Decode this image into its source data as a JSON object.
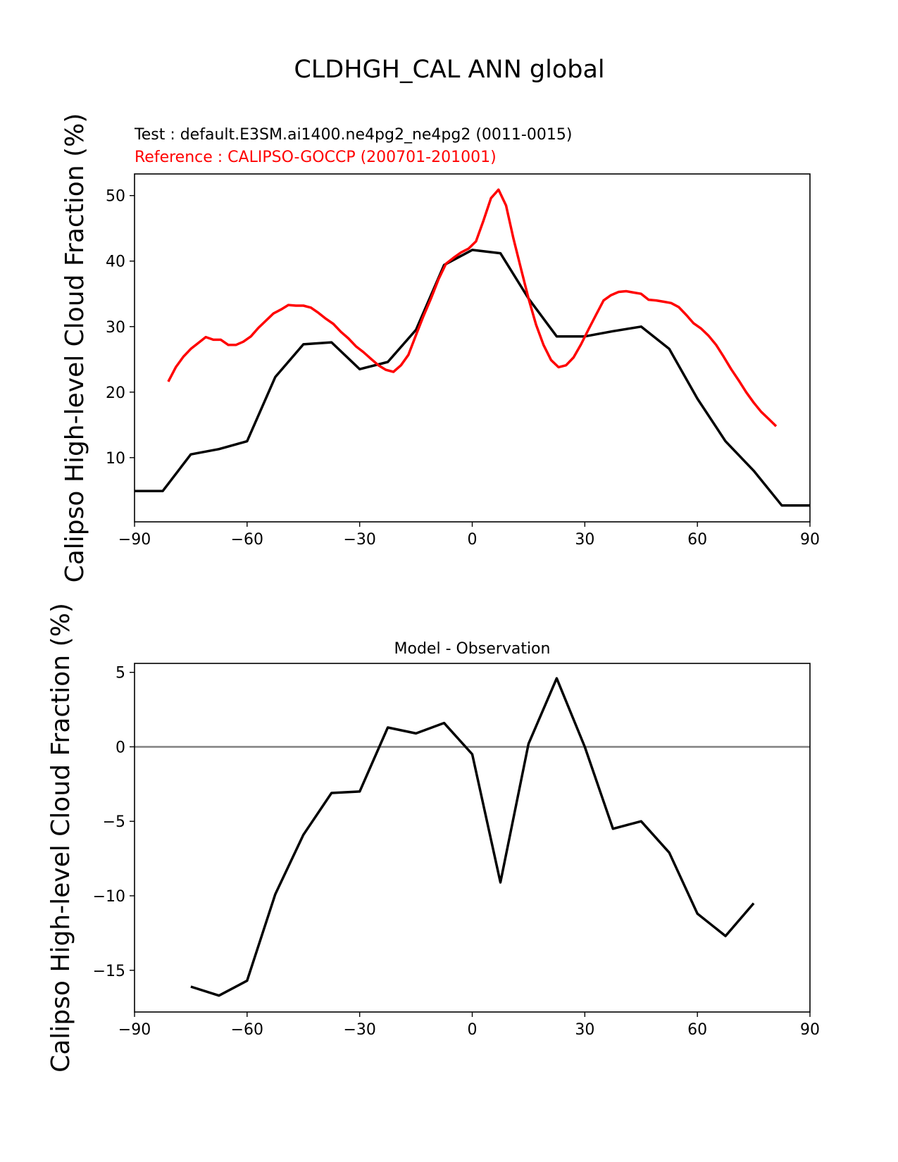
{
  "figure_title": "CLDHGH_CAL ANN global",
  "test_label": "Test : default.E3SM.ai1400.ne4pg2_ne4pg2 (0011-0015)",
  "reference_label": "Reference : CALIPSO-GOCCP (200701-201001)",
  "colors": {
    "test": "#000000",
    "reference": "#ff0000",
    "zero_line": "#808080"
  },
  "chart_data": [
    {
      "type": "line",
      "title": "",
      "xlabel": "",
      "ylabel": "Calipso High-level Cloud Fraction (%)",
      "xlim": [
        -90,
        90
      ],
      "ylim": [
        0.2,
        53.3
      ],
      "xticks": [
        -90,
        -60,
        -30,
        0,
        30,
        60,
        90
      ],
      "xtick_labels": [
        "−90",
        "−60",
        "−30",
        "0",
        "30",
        "60",
        "90"
      ],
      "yticks": [
        10,
        20,
        30,
        40,
        50
      ],
      "ytick_labels": [
        "10",
        "20",
        "30",
        "40",
        "50"
      ],
      "series": [
        {
          "name": "Test",
          "color": "#000000",
          "x": [
            -90,
            -82.5,
            -75,
            -67.5,
            -60,
            -52.5,
            -45,
            -37.5,
            -30,
            -22.5,
            -15,
            -7.5,
            0,
            7.5,
            15,
            22.5,
            30,
            37.5,
            45,
            52.5,
            60,
            67.5,
            75,
            82.5,
            90
          ],
          "y": [
            4.9,
            4.9,
            10.5,
            11.3,
            12.5,
            22.3,
            27.3,
            27.6,
            23.5,
            24.6,
            29.5,
            39.4,
            41.7,
            41.2,
            34.3,
            28.5,
            28.5,
            29.3,
            30.0,
            26.6,
            19.0,
            12.5,
            8.0,
            2.7,
            2.7
          ]
        },
        {
          "name": "Reference",
          "color": "#ff0000",
          "x": [
            -81,
            -79,
            -77,
            -75,
            -73,
            -71,
            -69,
            -67,
            -65,
            -63,
            -61,
            -59,
            -57,
            -55,
            -53,
            -51,
            -49,
            -47,
            -45,
            -43,
            -41,
            -39,
            -37,
            -35,
            -33,
            -31,
            -29,
            -27,
            -25,
            -23,
            -21,
            -19,
            -17,
            -15,
            -13,
            -11,
            -9,
            -7,
            -5,
            -3,
            -1,
            1,
            3,
            5,
            7,
            9,
            11,
            13,
            15,
            17,
            19,
            21,
            23,
            25,
            27,
            29,
            31,
            33,
            35,
            37,
            39,
            41,
            43,
            45,
            47,
            49,
            51,
            53,
            55,
            57,
            59,
            61,
            63,
            65,
            67,
            69,
            71,
            73,
            75,
            77,
            79,
            81
          ],
          "y": [
            21.6,
            23.8,
            25.4,
            26.6,
            27.5,
            28.4,
            28.0,
            28.0,
            27.2,
            27.2,
            27.7,
            28.5,
            29.8,
            30.9,
            32.0,
            32.6,
            33.3,
            33.2,
            33.2,
            32.9,
            32.1,
            31.2,
            30.4,
            29.2,
            28.2,
            27.0,
            26.1,
            25.1,
            24.1,
            23.4,
            23.1,
            24.1,
            25.7,
            28.7,
            31.6,
            34.3,
            37.2,
            39.6,
            40.5,
            41.3,
            41.9,
            43.0,
            46.2,
            49.6,
            50.9,
            48.5,
            43.4,
            38.8,
            34.3,
            30.3,
            27.2,
            24.9,
            23.8,
            24.1,
            25.3,
            27.3,
            29.6,
            31.8,
            34.0,
            34.8,
            35.3,
            35.4,
            35.2,
            35.0,
            34.1,
            34.0,
            33.8,
            33.6,
            33.0,
            31.8,
            30.5,
            29.7,
            28.6,
            27.2,
            25.4,
            23.5,
            21.8,
            20.0,
            18.4,
            17.0,
            15.9,
            14.8
          ]
        }
      ]
    },
    {
      "type": "line",
      "title": "Model - Observation",
      "xlabel": "",
      "ylabel": "Calipso High-level Cloud Fraction (%)",
      "xlim": [
        -90,
        90
      ],
      "ylim": [
        -17.8,
        5.6
      ],
      "xticks": [
        -90,
        -60,
        -30,
        0,
        30,
        60,
        90
      ],
      "xtick_labels": [
        "−90",
        "−60",
        "−30",
        "0",
        "30",
        "60",
        "90"
      ],
      "yticks": [
        5,
        0,
        -5,
        -10,
        -15
      ],
      "ytick_labels": [
        "5",
        "0",
        "−5",
        "−10",
        "−15"
      ],
      "zero_line": 0,
      "series": [
        {
          "name": "Model - Observation",
          "color": "#000000",
          "x": [
            -75,
            -67.5,
            -60,
            -52.5,
            -45,
            -37.5,
            -30,
            -22.5,
            -15,
            -7.5,
            0,
            7.5,
            15,
            22.5,
            30,
            37.5,
            45,
            52.5,
            60,
            67.5,
            75
          ],
          "y": [
            -16.1,
            -16.7,
            -15.7,
            -9.9,
            -5.9,
            -3.1,
            -3.0,
            1.3,
            0.9,
            1.6,
            -0.5,
            -9.1,
            0.2,
            4.6,
            0.0,
            -5.5,
            -5.0,
            -7.1,
            -11.2,
            -12.7,
            -10.5
          ]
        }
      ]
    }
  ]
}
